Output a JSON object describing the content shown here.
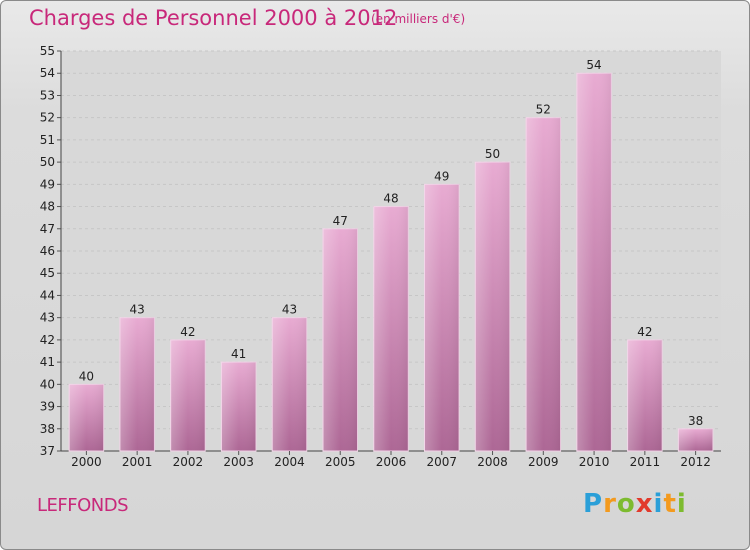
{
  "title": "Charges de Personnel 2000 à 2012",
  "subtitle": "(en milliers d'€)",
  "commune": "LEFFONDS",
  "logo": {
    "text": "Proxiti"
  },
  "colors": {
    "title": "#c8287a",
    "bar_top": "#e6a8d0",
    "bar_bottom": "#b06a98",
    "plot_bg": "#d9d9d9",
    "grid": "#c9c9c9"
  },
  "chart_data": {
    "type": "bar",
    "title": "Charges de Personnel 2000 à 2012",
    "subtitle": "(en milliers d'€)",
    "categories": [
      "2000",
      "2001",
      "2002",
      "2003",
      "2004",
      "2005",
      "2006",
      "2007",
      "2008",
      "2009",
      "2010",
      "2011",
      "2012"
    ],
    "values": [
      40,
      43,
      42,
      41,
      43,
      47,
      48,
      49,
      50,
      52,
      54,
      42,
      38
    ],
    "ylim": [
      37,
      55
    ],
    "yticks": [
      37,
      38,
      39,
      40,
      41,
      42,
      43,
      44,
      45,
      46,
      47,
      48,
      49,
      50,
      51,
      52,
      53,
      54,
      55
    ],
    "grid": true,
    "xlabel": "",
    "ylabel": ""
  }
}
